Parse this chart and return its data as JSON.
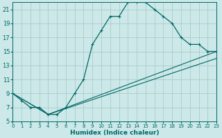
{
  "xlabel": "Humidex (Indice chaleur)",
  "bg_color": "#cce8e8",
  "grid_color": "#aacccc",
  "line_color": "#006666",
  "xlim": [
    0,
    23
  ],
  "ylim": [
    5,
    22
  ],
  "yticks": [
    5,
    7,
    9,
    11,
    13,
    15,
    17,
    19,
    21
  ],
  "xticks": [
    0,
    1,
    2,
    3,
    4,
    5,
    6,
    7,
    8,
    9,
    10,
    11,
    12,
    13,
    14,
    15,
    16,
    17,
    18,
    19,
    20,
    21,
    22,
    23
  ],
  "curve_main_x": [
    0,
    1,
    2,
    3,
    4,
    5,
    6,
    7,
    8,
    9,
    10,
    11,
    12,
    13,
    14,
    15,
    16,
    17,
    18,
    19,
    20,
    21,
    22,
    23
  ],
  "curve_main_y": [
    9,
    8,
    7,
    7,
    6,
    6,
    7,
    9,
    11,
    16,
    18,
    20,
    20,
    22,
    22,
    22,
    21,
    20,
    19,
    17,
    16,
    16,
    15,
    15
  ],
  "line1_x": [
    0,
    4,
    23
  ],
  "line1_y": [
    9,
    6,
    14
  ],
  "line2_x": [
    0,
    4,
    23
  ],
  "line2_y": [
    9,
    6,
    15
  ]
}
